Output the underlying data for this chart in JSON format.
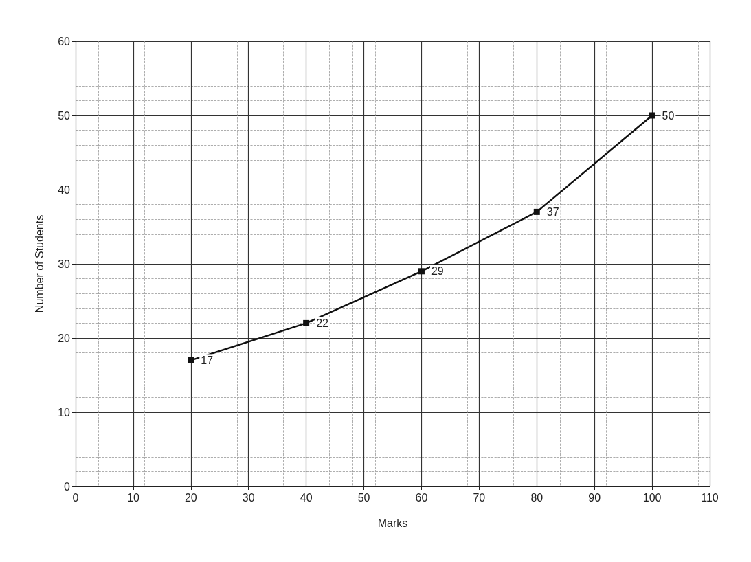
{
  "chart_data": {
    "type": "line",
    "xlabel": "Marks",
    "ylabel": "Number of Students",
    "x": [
      20,
      40,
      60,
      80,
      100
    ],
    "series": [
      {
        "color": "#111111",
        "values": [
          17,
          22,
          29,
          37,
          50
        ]
      }
    ],
    "xlim": [
      0,
      110
    ],
    "xticks": [
      0,
      10,
      20,
      30,
      40,
      50,
      60,
      70,
      80,
      90,
      100,
      110
    ],
    "ylim": [
      0,
      60
    ],
    "yticks": [
      0,
      10,
      20,
      30,
      40,
      50,
      60
    ],
    "grid": true,
    "marker": "square",
    "line_style": "solid",
    "data_labels": true
  }
}
